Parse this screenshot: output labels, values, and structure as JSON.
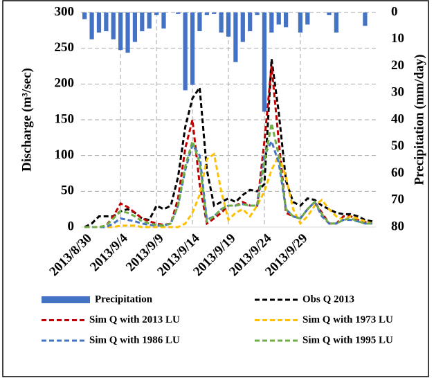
{
  "chart_data": {
    "type": "bar-line",
    "y_label": "Discharge (m³/sec)",
    "y2_label": "Precipitation (mm/day)",
    "categories": [
      "2013/8/30",
      null,
      null,
      null,
      null,
      "2013/9/4",
      null,
      null,
      null,
      null,
      "2013/9/9",
      null,
      null,
      null,
      null,
      "2013/9/14",
      null,
      null,
      null,
      null,
      "2013/9/19",
      null,
      null,
      null,
      null,
      "2013/9/24",
      null,
      null,
      null,
      null,
      "2013/9/29",
      null,
      null,
      null,
      null,
      null,
      null,
      null,
      null,
      null,
      null
    ],
    "ylim": [
      0,
      300
    ],
    "yticks": [
      0,
      50,
      100,
      150,
      200,
      250,
      300
    ],
    "y2lim": [
      80,
      0
    ],
    "y2ticks": [
      0,
      10,
      20,
      30,
      40,
      50,
      60,
      70,
      80
    ],
    "grid": true,
    "series": [
      {
        "name": "Precipitation",
        "type": "bar",
        "axis": "y2",
        "color": "#4472c4",
        "values": [
          2.5,
          10,
          7.5,
          7,
          10,
          14,
          15,
          11,
          7,
          6,
          1,
          6,
          0,
          0.5,
          29,
          27,
          7,
          1,
          0.5,
          7.5,
          9,
          18.5,
          11,
          7,
          1,
          37,
          7.5,
          4.5,
          5.5,
          0,
          7.5,
          4.5,
          0,
          0,
          1,
          7.5,
          0,
          0,
          0,
          5,
          0
        ]
      },
      {
        "name": "Obs Q 2013",
        "type": "line",
        "color": "#000000",
        "values": [
          0,
          5,
          15,
          15,
          15,
          22,
          25,
          20,
          12,
          10,
          30,
          25,
          30,
          70,
          140,
          180,
          195,
          80,
          30,
          35,
          40,
          35,
          45,
          52,
          50,
          60,
          235,
          160,
          65,
          35,
          30,
          40,
          38,
          30,
          25,
          20,
          18,
          18,
          15,
          10,
          8
        ]
      },
      {
        "name": "Sim Q with 2013 LU",
        "type": "line",
        "color": "#c00000",
        "values": [
          0,
          0,
          0,
          2,
          15,
          33,
          28,
          20,
          12,
          8,
          5,
          3,
          5,
          40,
          110,
          150,
          60,
          5,
          12,
          20,
          30,
          30,
          35,
          30,
          30,
          120,
          225,
          120,
          20,
          15,
          12,
          25,
          35,
          20,
          5,
          5,
          15,
          15,
          10,
          7,
          5
        ]
      },
      {
        "name": "Sim Q with 1973 LU",
        "type": "line",
        "color": "#ffc000",
        "values": [
          0,
          0,
          0,
          0,
          0,
          2,
          2,
          2,
          0,
          0,
          0,
          0,
          0,
          0,
          5,
          20,
          45,
          95,
          102,
          50,
          10,
          20,
          25,
          15,
          30,
          50,
          80,
          100,
          70,
          25,
          5,
          15,
          30,
          38,
          25,
          15,
          10,
          15,
          12,
          8,
          5
        ]
      },
      {
        "name": "Sim Q with 1986 LU",
        "type": "line",
        "color": "#4472c4",
        "values": [
          0,
          0,
          0,
          0,
          5,
          12,
          10,
          8,
          5,
          3,
          2,
          2,
          5,
          30,
          80,
          115,
          100,
          10,
          15,
          25,
          30,
          30,
          32,
          30,
          30,
          100,
          120,
          90,
          25,
          15,
          12,
          25,
          35,
          15,
          5,
          5,
          10,
          10,
          8,
          5,
          5
        ]
      },
      {
        "name": "Sim Q with 1995 LU",
        "type": "line",
        "color": "#70ad47",
        "values": [
          0,
          0,
          0,
          2,
          12,
          22,
          20,
          15,
          8,
          5,
          3,
          2,
          5,
          30,
          85,
          120,
          90,
          8,
          15,
          25,
          30,
          30,
          32,
          30,
          30,
          90,
          145,
          100,
          25,
          15,
          12,
          25,
          35,
          18,
          5,
          5,
          10,
          12,
          8,
          5,
          5
        ]
      }
    ]
  }
}
